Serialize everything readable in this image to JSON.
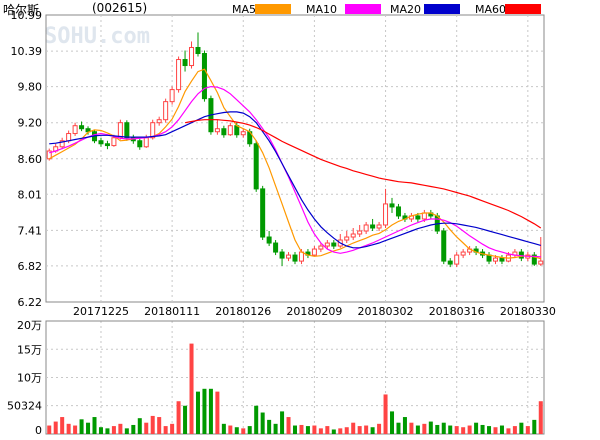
{
  "header": {
    "stock_name": "哈尔斯",
    "stock_code": "(002615)",
    "watermark": "SOHU.com"
  },
  "legend": [
    {
      "label": "MA5",
      "color": "#ff9900"
    },
    {
      "label": "MA10",
      "color": "#ff00ff"
    },
    {
      "label": "MA20",
      "color": "#0000cc"
    },
    {
      "label": "MA60",
      "color": "#ff0000"
    }
  ],
  "colors": {
    "up": "#ff4444",
    "down": "#009900",
    "grid": "#c8c8c8"
  },
  "chart_data": [
    {
      "type": "candlestick",
      "y_ticks": [
        "10.99",
        "10.39",
        "9.80",
        "9.20",
        "8.60",
        "8.01",
        "7.41",
        "6.82",
        "6.22"
      ],
      "ylim": [
        6.22,
        10.99
      ],
      "x_tick_labels": [
        "20171225",
        "20180111",
        "20180126",
        "20180209",
        "20180302",
        "20180316",
        "20180330"
      ],
      "x_tick_index": [
        8,
        19,
        30,
        41,
        52,
        63,
        74
      ],
      "candles": [
        [
          8.6,
          8.73,
          8.57,
          8.77
        ],
        [
          8.73,
          8.8,
          8.7,
          8.85
        ],
        [
          8.8,
          8.9,
          8.76,
          8.95
        ],
        [
          8.9,
          9.02,
          8.86,
          9.07
        ],
        [
          9.02,
          9.15,
          8.98,
          9.2
        ],
        [
          9.15,
          9.1,
          9.06,
          9.22
        ],
        [
          9.1,
          9.05,
          9.0,
          9.14
        ],
        [
          9.05,
          8.9,
          8.86,
          9.08
        ],
        [
          8.9,
          8.85,
          8.8,
          8.95
        ],
        [
          8.85,
          8.82,
          8.76,
          8.9
        ],
        [
          8.82,
          8.95,
          8.8,
          9.0
        ],
        [
          8.95,
          9.2,
          8.92,
          9.25
        ],
        [
          9.2,
          8.95,
          8.9,
          9.24
        ],
        [
          8.95,
          8.9,
          8.85,
          9.0
        ],
        [
          8.9,
          8.8,
          8.75,
          8.95
        ],
        [
          8.8,
          8.95,
          8.78,
          9.0
        ],
        [
          8.95,
          9.2,
          8.92,
          9.25
        ],
        [
          9.2,
          9.25,
          9.15,
          9.3
        ],
        [
          9.25,
          9.55,
          9.2,
          9.6
        ],
        [
          9.55,
          9.75,
          9.5,
          9.8
        ],
        [
          9.75,
          10.25,
          9.7,
          10.3
        ],
        [
          10.25,
          10.15,
          10.05,
          10.4
        ],
        [
          10.15,
          10.45,
          10.1,
          10.55
        ],
        [
          10.45,
          10.35,
          10.3,
          10.7
        ],
        [
          10.35,
          9.6,
          9.55,
          10.4
        ],
        [
          9.6,
          9.05,
          9.0,
          9.65
        ],
        [
          9.05,
          9.1,
          9.0,
          9.25
        ],
        [
          9.1,
          9.0,
          8.95,
          9.15
        ],
        [
          9.0,
          9.15,
          8.98,
          9.2
        ],
        [
          9.15,
          9.0,
          8.95,
          9.2
        ],
        [
          9.0,
          9.05,
          8.95,
          9.1
        ],
        [
          9.05,
          8.85,
          8.8,
          9.1
        ],
        [
          8.85,
          8.1,
          8.05,
          8.9
        ],
        [
          8.1,
          7.3,
          7.25,
          8.15
        ],
        [
          7.3,
          7.2,
          7.15,
          7.4
        ],
        [
          7.2,
          7.05,
          7.0,
          7.25
        ],
        [
          7.05,
          6.95,
          6.82,
          7.1
        ],
        [
          6.95,
          7.0,
          6.9,
          7.05
        ],
        [
          7.0,
          6.9,
          6.85,
          7.05
        ],
        [
          6.9,
          7.05,
          6.85,
          7.1
        ],
        [
          7.05,
          7.0,
          6.95,
          7.1
        ],
        [
          7.0,
          7.1,
          6.98,
          7.15
        ],
        [
          7.1,
          7.15,
          7.05,
          7.2
        ],
        [
          7.15,
          7.2,
          7.1,
          7.25
        ],
        [
          7.2,
          7.15,
          7.1,
          7.25
        ],
        [
          7.15,
          7.25,
          7.12,
          7.35
        ],
        [
          7.25,
          7.3,
          7.2,
          7.4
        ],
        [
          7.3,
          7.35,
          7.25,
          7.45
        ],
        [
          7.35,
          7.4,
          7.3,
          7.5
        ],
        [
          7.4,
          7.5,
          7.35,
          7.55
        ],
        [
          7.5,
          7.45,
          7.4,
          7.6
        ],
        [
          7.45,
          7.5,
          7.4,
          7.55
        ],
        [
          7.5,
          7.85,
          7.45,
          8.1
        ],
        [
          7.85,
          7.8,
          7.7,
          7.95
        ],
        [
          7.8,
          7.65,
          7.6,
          7.85
        ],
        [
          7.65,
          7.6,
          7.55,
          7.7
        ],
        [
          7.6,
          7.65,
          7.55,
          7.7
        ],
        [
          7.65,
          7.6,
          7.55,
          7.7
        ],
        [
          7.6,
          7.7,
          7.55,
          7.75
        ],
        [
          7.7,
          7.65,
          7.6,
          7.75
        ],
        [
          7.65,
          7.4,
          7.35,
          7.7
        ],
        [
          7.4,
          6.9,
          6.85,
          7.45
        ],
        [
          6.9,
          6.85,
          6.8,
          6.95
        ],
        [
          6.85,
          7.0,
          6.8,
          7.05
        ],
        [
          7.0,
          7.05,
          6.95,
          7.1
        ],
        [
          7.05,
          7.1,
          7.0,
          7.15
        ],
        [
          7.1,
          7.05,
          7.0,
          7.15
        ],
        [
          7.05,
          7.0,
          6.95,
          7.1
        ],
        [
          7.0,
          6.9,
          6.85,
          7.05
        ],
        [
          6.9,
          6.95,
          6.85,
          7.0
        ],
        [
          6.95,
          6.9,
          6.85,
          7.0
        ],
        [
          6.9,
          7.0,
          6.88,
          7.05
        ],
        [
          7.0,
          7.05,
          6.95,
          7.1
        ],
        [
          7.05,
          6.95,
          6.9,
          7.1
        ],
        [
          6.95,
          7.0,
          6.9,
          7.05
        ],
        [
          7.0,
          6.85,
          6.82,
          7.05
        ],
        [
          6.85,
          6.9,
          6.82,
          7.3
        ]
      ],
      "series": [
        {
          "name": "MA5",
          "values": [
            8.6,
            8.66,
            8.72,
            8.78,
            8.84,
            8.93,
            9.04,
            9.08,
            9.07,
            9.03,
            8.98,
            8.9,
            8.91,
            8.93,
            8.96,
            8.95,
            8.97,
            9.02,
            9.13,
            9.26,
            9.47,
            9.72,
            9.89,
            10.05,
            10.09,
            9.9,
            9.7,
            9.45,
            9.3,
            9.15,
            9.1,
            9.05,
            8.9,
            8.7,
            8.45,
            8.15,
            7.85,
            7.55,
            7.25,
            7.05,
            7.0,
            6.98,
            6.99,
            7.03,
            7.07,
            7.1,
            7.15,
            7.2,
            7.24,
            7.28,
            7.33,
            7.36,
            7.42,
            7.5,
            7.56,
            7.6,
            7.65,
            7.68,
            7.7,
            7.7,
            7.65,
            7.55,
            7.42,
            7.3,
            7.2,
            7.1,
            7.05,
            7.02,
            7.0,
            6.98,
            6.96,
            6.95,
            6.96,
            6.98,
            6.99,
            6.97,
            6.94
          ]
        },
        {
          "name": "MA10",
          "values": [
            8.7,
            8.73,
            8.77,
            8.81,
            8.86,
            8.91,
            8.96,
            9.0,
            9.02,
            9.0,
            8.97,
            8.94,
            8.93,
            8.93,
            8.94,
            8.95,
            8.97,
            9.0,
            9.05,
            9.13,
            9.25,
            9.4,
            9.55,
            9.68,
            9.77,
            9.8,
            9.79,
            9.75,
            9.68,
            9.58,
            9.48,
            9.38,
            9.25,
            9.1,
            8.95,
            8.75,
            8.52,
            8.3,
            8.05,
            7.8,
            7.55,
            7.35,
            7.2,
            7.1,
            7.05,
            7.03,
            7.05,
            7.08,
            7.12,
            7.16,
            7.2,
            7.25,
            7.3,
            7.35,
            7.4,
            7.45,
            7.5,
            7.54,
            7.58,
            7.6,
            7.6,
            7.58,
            7.54,
            7.48,
            7.4,
            7.32,
            7.25,
            7.18,
            7.12,
            7.08,
            7.05,
            7.02,
            7.0,
            6.99,
            6.98,
            6.98,
            6.97
          ]
        },
        {
          "name": "MA20",
          "values": [
            8.85,
            8.86,
            8.88,
            8.9,
            8.92,
            8.94,
            8.96,
            8.98,
            8.99,
            8.99,
            8.98,
            8.97,
            8.96,
            8.96,
            8.96,
            8.96,
            8.97,
            8.98,
            9.0,
            9.05,
            9.1,
            9.15,
            9.2,
            9.25,
            9.3,
            9.33,
            9.35,
            9.37,
            9.38,
            9.38,
            9.36,
            9.3,
            9.2,
            9.05,
            8.9,
            8.72,
            8.52,
            8.32,
            8.12,
            7.92,
            7.75,
            7.6,
            7.47,
            7.37,
            7.28,
            7.2,
            7.15,
            7.12,
            7.12,
            7.14,
            7.17,
            7.2,
            7.24,
            7.28,
            7.32,
            7.36,
            7.4,
            7.44,
            7.47,
            7.5,
            7.52,
            7.53,
            7.53,
            7.52,
            7.5,
            7.48,
            7.46,
            7.43,
            7.4,
            7.37,
            7.34,
            7.31,
            7.28,
            7.25,
            7.22,
            7.19,
            7.16
          ]
        },
        {
          "name": "MA60",
          "values": [
            null,
            null,
            null,
            null,
            null,
            null,
            null,
            null,
            null,
            null,
            null,
            null,
            null,
            null,
            null,
            null,
            null,
            null,
            null,
            null,
            null,
            9.2,
            9.22,
            9.24,
            9.25,
            9.25,
            9.25,
            9.24,
            9.23,
            9.21,
            9.19,
            9.16,
            9.12,
            9.07,
            9.01,
            8.95,
            8.89,
            8.84,
            8.79,
            8.74,
            8.69,
            8.64,
            8.59,
            8.55,
            8.51,
            8.47,
            8.44,
            8.4,
            8.37,
            8.34,
            8.31,
            8.28,
            8.26,
            8.24,
            8.22,
            8.21,
            8.2,
            8.18,
            8.16,
            8.14,
            8.12,
            8.1,
            8.07,
            8.04,
            8.01,
            7.98,
            7.94,
            7.9,
            7.86,
            7.82,
            7.78,
            7.74,
            7.69,
            7.64,
            7.58,
            7.52,
            7.45
          ]
        }
      ]
    },
    {
      "type": "bar",
      "y_ticks": [
        "20万",
        "15万",
        "10万",
        "50324",
        "0"
      ],
      "ylim": [
        0,
        200000
      ],
      "values": [
        15000,
        22000,
        30000,
        18000,
        15000,
        26000,
        20000,
        30000,
        12000,
        10000,
        14000,
        18000,
        10000,
        16000,
        28000,
        20000,
        32000,
        30000,
        14000,
        18000,
        58000,
        50000,
        160000,
        75000,
        80000,
        80000,
        75000,
        18000,
        15000,
        12000,
        10000,
        14000,
        50000,
        38000,
        25000,
        18000,
        40000,
        30000,
        15000,
        16000,
        14000,
        15000,
        10000,
        14000,
        8000,
        10000,
        12000,
        20000,
        14000,
        15000,
        12000,
        18000,
        70000,
        40000,
        20000,
        30000,
        20000,
        15000,
        18000,
        22000,
        16000,
        20000,
        15000,
        14000,
        12000,
        15000,
        20000,
        16000,
        14000,
        12000,
        15000,
        10000,
        14000,
        20000,
        14000,
        25000,
        58000
      ]
    }
  ]
}
